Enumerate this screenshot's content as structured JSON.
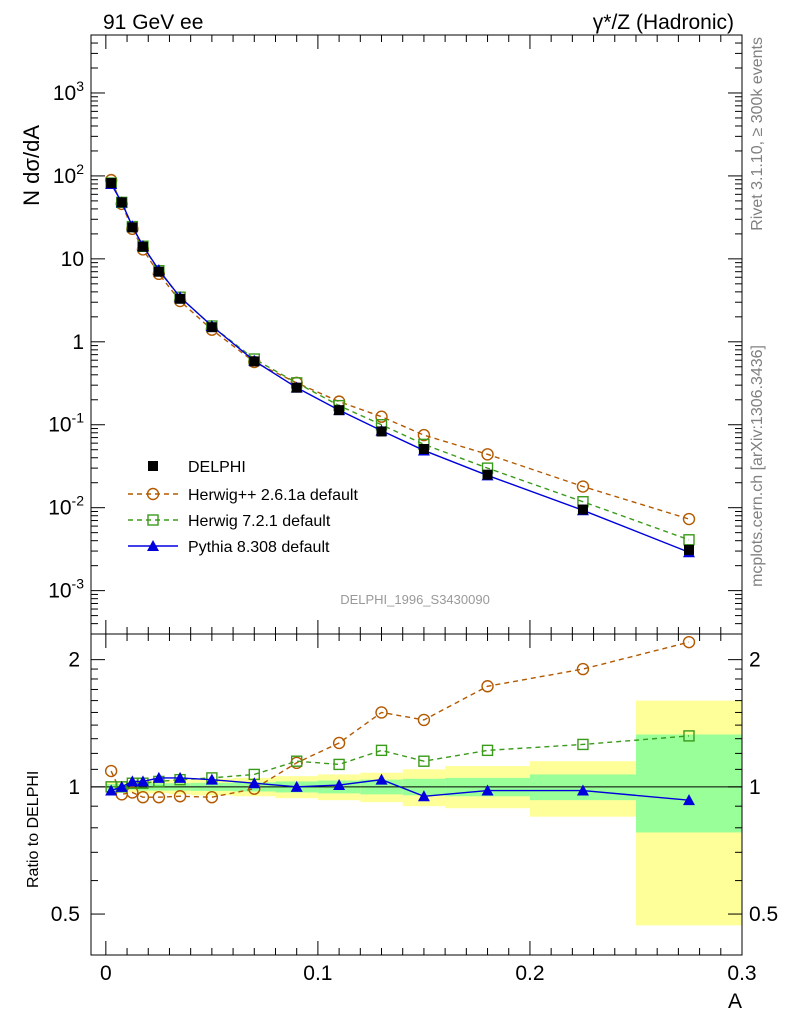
{
  "header": {
    "left": "91 GeV ee",
    "right": "γ*/Z (Hadronic)"
  },
  "side": {
    "top": "Rivet 3.1.10, ≥ 300k events",
    "bottom": "mcplots.cern.ch [arXiv:1306.3436]"
  },
  "watermark": "DELPHI_1996_S3430090",
  "colors": {
    "data": "#000000",
    "herwigpp": "#b35900",
    "herwig7": "#3a9a1a",
    "pythia": "#0000dd",
    "band_outer": "#ffff99",
    "band_inner": "#99ff99"
  },
  "chart_data": [
    {
      "type": "line",
      "ylabel": "N dσ/dA",
      "yscale": "log",
      "ylim": [
        0.0003,
        5000
      ],
      "xlim": [
        -0.007,
        0.3
      ],
      "y_tick_labels": [
        "10^-3",
        "10^-2",
        "10^-1",
        "1",
        "10",
        "10^2",
        "10^3"
      ],
      "x": [
        0.0025,
        0.0075,
        0.0125,
        0.0175,
        0.025,
        0.035,
        0.05,
        0.07,
        0.09,
        0.11,
        0.13,
        0.15,
        0.18,
        0.225,
        0.275
      ],
      "series": [
        {
          "name": "DELPHI",
          "values": [
            82,
            48,
            24,
            14,
            7.0,
            3.3,
            1.5,
            0.58,
            0.28,
            0.15,
            0.083,
            0.051,
            0.025,
            0.0095,
            0.0031
          ]
        },
        {
          "name": "Herwig++ 2.6.1a default",
          "values": [
            89,
            46,
            23,
            13,
            6.6,
            3.1,
            1.4,
            0.57,
            0.32,
            0.19,
            0.125,
            0.075,
            0.044,
            0.018,
            0.0073
          ]
        },
        {
          "name": "Herwig 7.2.1 default",
          "values": [
            82,
            48,
            24.5,
            14.2,
            7.2,
            3.45,
            1.55,
            0.62,
            0.32,
            0.17,
            0.1,
            0.058,
            0.03,
            0.0118,
            0.0041
          ]
        },
        {
          "name": "Pythia 8.308 default",
          "values": [
            80,
            48,
            24.7,
            14.3,
            7.35,
            3.45,
            1.55,
            0.59,
            0.28,
            0.15,
            0.085,
            0.049,
            0.0245,
            0.0093,
            0.0029
          ]
        }
      ],
      "legend": "lower-left"
    },
    {
      "type": "line",
      "xlabel": "A",
      "ylabel": "Ratio to DELPHI",
      "ylim": [
        0.4,
        2.3
      ],
      "xlim": [
        -0.007,
        0.3
      ],
      "y_tick_labels": [
        "0.5",
        "1",
        "2"
      ],
      "x_tick_labels": [
        "0",
        "0.1",
        "0.2",
        "0.3"
      ],
      "x": [
        0.0025,
        0.0075,
        0.0125,
        0.0175,
        0.025,
        0.035,
        0.05,
        0.07,
        0.09,
        0.11,
        0.13,
        0.15,
        0.18,
        0.225,
        0.275
      ],
      "series": [
        {
          "name": "Herwig++ 2.6.1a default",
          "values": [
            1.09,
            0.96,
            0.97,
            0.945,
            0.945,
            0.95,
            0.945,
            0.99,
            1.14,
            1.27,
            1.5,
            1.44,
            1.73,
            1.9,
            2.2
          ]
        },
        {
          "name": "Herwig 7.2.1 default",
          "values": [
            1.0,
            1.0,
            1.02,
            1.02,
            1.03,
            1.04,
            1.05,
            1.07,
            1.15,
            1.13,
            1.22,
            1.15,
            1.22,
            1.26,
            1.32
          ]
        },
        {
          "name": "Pythia 8.308 default",
          "values": [
            0.98,
            1.0,
            1.03,
            1.03,
            1.05,
            1.05,
            1.04,
            1.02,
            1.0,
            1.01,
            1.04,
            0.95,
            0.98,
            0.98,
            0.93
          ]
        }
      ],
      "bands": [
        {
          "x0": 0.0,
          "x1": 0.005,
          "outer": [
            0.97,
            1.03
          ],
          "inner": [
            0.985,
            1.015
          ]
        },
        {
          "x0": 0.005,
          "x1": 0.01,
          "outer": [
            0.97,
            1.03
          ],
          "inner": [
            0.985,
            1.015
          ]
        },
        {
          "x0": 0.01,
          "x1": 0.015,
          "outer": [
            0.97,
            1.03
          ],
          "inner": [
            0.985,
            1.015
          ]
        },
        {
          "x0": 0.015,
          "x1": 0.02,
          "outer": [
            0.965,
            1.035
          ],
          "inner": [
            0.98,
            1.02
          ]
        },
        {
          "x0": 0.02,
          "x1": 0.03,
          "outer": [
            0.965,
            1.035
          ],
          "inner": [
            0.98,
            1.02
          ]
        },
        {
          "x0": 0.03,
          "x1": 0.04,
          "outer": [
            0.96,
            1.04
          ],
          "inner": [
            0.98,
            1.02
          ]
        },
        {
          "x0": 0.04,
          "x1": 0.06,
          "outer": [
            0.955,
            1.045
          ],
          "inner": [
            0.978,
            1.022
          ]
        },
        {
          "x0": 0.06,
          "x1": 0.08,
          "outer": [
            0.95,
            1.05
          ],
          "inner": [
            0.975,
            1.025
          ]
        },
        {
          "x0": 0.08,
          "x1": 0.1,
          "outer": [
            0.94,
            1.06
          ],
          "inner": [
            0.97,
            1.03
          ]
        },
        {
          "x0": 0.1,
          "x1": 0.12,
          "outer": [
            0.93,
            1.07
          ],
          "inner": [
            0.965,
            1.035
          ]
        },
        {
          "x0": 0.12,
          "x1": 0.14,
          "outer": [
            0.92,
            1.08
          ],
          "inner": [
            0.96,
            1.04
          ]
        },
        {
          "x0": 0.14,
          "x1": 0.16,
          "outer": [
            0.9,
            1.1
          ],
          "inner": [
            0.955,
            1.045
          ]
        },
        {
          "x0": 0.16,
          "x1": 0.2,
          "outer": [
            0.89,
            1.12
          ],
          "inner": [
            0.95,
            1.05
          ]
        },
        {
          "x0": 0.2,
          "x1": 0.25,
          "outer": [
            0.85,
            1.15
          ],
          "inner": [
            0.93,
            1.07
          ]
        },
        {
          "x0": 0.25,
          "x1": 0.3,
          "outer": [
            0.47,
            1.6
          ],
          "inner": [
            0.78,
            1.33
          ]
        }
      ]
    }
  ]
}
